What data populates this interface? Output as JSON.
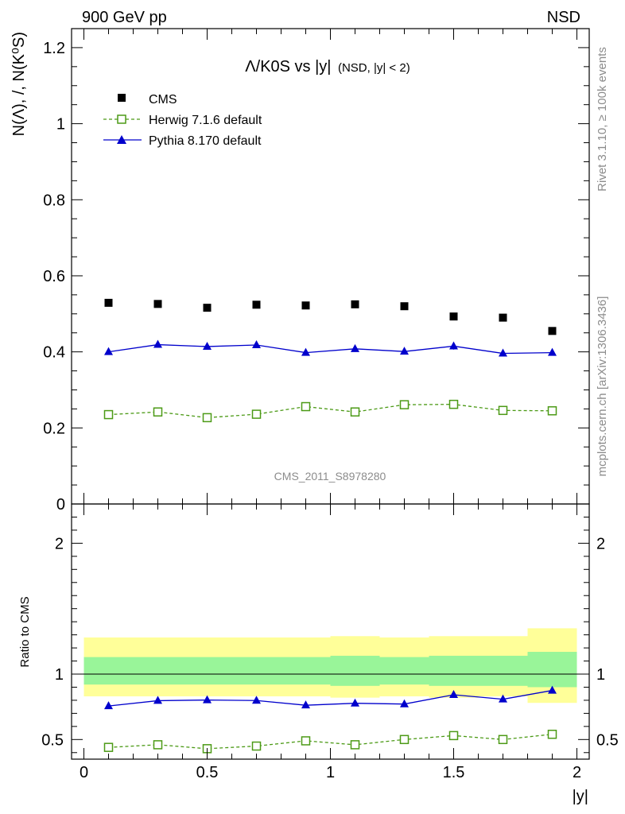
{
  "header": {
    "energy_label": "900 GeV pp",
    "process_label": "NSD"
  },
  "side_labels": {
    "rivet": "Rivet 3.1.10, ≥ 100k events",
    "mcplots": "mcplots.cern.ch [arXiv:1306.3436]"
  },
  "watermark": "CMS_2011_S8978280",
  "colors": {
    "cms": "#000000",
    "herwig": "#4c9a16",
    "pythia": "#0000cc",
    "band_inner": "#99f599",
    "band_outer": "#ffff99"
  },
  "chart_data": [
    {
      "type": "scatter",
      "title_main": "Λ/K0S vs |y|",
      "title_sub": "(NSD, |y| < 2)",
      "ylabel": "N(Λ), /, N(K⁰S)",
      "ylim": [
        0,
        1.25
      ],
      "xlim": [
        -0.05,
        2.05
      ],
      "yticks": [
        0,
        0.2,
        0.4,
        0.6,
        0.8,
        1,
        1.2
      ],
      "ytick_labels": [
        "0",
        "0.2",
        "0.4",
        "0.6",
        "0.8",
        "1",
        "1.2"
      ],
      "x": [
        0.1,
        0.3,
        0.5,
        0.7,
        0.9,
        1.1,
        1.3,
        1.5,
        1.7,
        1.9
      ],
      "legend_position": "top-left",
      "series": [
        {
          "name": "CMS",
          "key": "cms",
          "marker": "filled-square",
          "values": [
            0.529,
            0.526,
            0.516,
            0.524,
            0.522,
            0.525,
            0.52,
            0.493,
            0.49,
            0.455
          ]
        },
        {
          "name": "Herwig 7.1.6 default",
          "key": "herwig",
          "marker": "open-square",
          "line": "dashed",
          "values": [
            0.235,
            0.242,
            0.227,
            0.236,
            0.256,
            0.242,
            0.261,
            0.262,
            0.246,
            0.245
          ],
          "errors": [
            0.006,
            0.006,
            0.006,
            0.006,
            0.006,
            0.006,
            0.006,
            0.006,
            0.006,
            0.006
          ]
        },
        {
          "name": "Pythia 8.170 default",
          "key": "pythia",
          "marker": "filled-triangle",
          "line": "solid",
          "values": [
            0.4,
            0.419,
            0.414,
            0.418,
            0.398,
            0.408,
            0.401,
            0.415,
            0.396,
            0.398
          ],
          "errors": [
            0.006,
            0.008,
            0.008,
            0.008,
            0.006,
            0.008,
            0.007,
            0.009,
            0.007,
            0.008
          ]
        }
      ]
    },
    {
      "type": "line",
      "ylabel": "Ratio to CMS",
      "xlabel": "|y|",
      "ylim": [
        0.35,
        2.3
      ],
      "xlim": [
        -0.05,
        2.05
      ],
      "xticks": [
        0,
        0.5,
        1,
        1.5,
        2
      ],
      "xtick_labels": [
        "0",
        "0.5",
        "1",
        "1.5",
        "2"
      ],
      "yticks": [
        0.5,
        1,
        2
      ],
      "ytick_labels": [
        "0.5",
        "1",
        "2"
      ],
      "reference_line": 1,
      "x_edges": [
        0,
        0.2,
        0.4,
        0.6,
        0.8,
        1.0,
        1.2,
        1.4,
        1.6,
        1.8,
        2.0
      ],
      "band_inner": {
        "low": [
          0.92,
          0.92,
          0.92,
          0.92,
          0.92,
          0.91,
          0.92,
          0.91,
          0.91,
          0.9
        ],
        "high": [
          1.13,
          1.13,
          1.13,
          1.13,
          1.13,
          1.14,
          1.13,
          1.14,
          1.14,
          1.17
        ]
      },
      "band_outer": {
        "low": [
          0.83,
          0.83,
          0.83,
          0.83,
          0.83,
          0.82,
          0.83,
          0.82,
          0.83,
          0.78
        ],
        "high": [
          1.28,
          1.28,
          1.28,
          1.28,
          1.28,
          1.29,
          1.28,
          1.29,
          1.29,
          1.35
        ]
      },
      "x": [
        0.1,
        0.3,
        0.5,
        0.7,
        0.9,
        1.1,
        1.3,
        1.5,
        1.7,
        1.9
      ],
      "series": [
        {
          "name": "Herwig 7.1.6 default",
          "key": "herwig",
          "marker": "open-square",
          "line": "dashed",
          "values": [
            0.44,
            0.46,
            0.43,
            0.45,
            0.49,
            0.46,
            0.5,
            0.53,
            0.5,
            0.54
          ],
          "errors": [
            0.015,
            0.015,
            0.015,
            0.015,
            0.015,
            0.02,
            0.015,
            0.015,
            0.015,
            0.015
          ]
        },
        {
          "name": "Pythia 8.170 default",
          "key": "pythia",
          "marker": "filled-triangle",
          "line": "solid",
          "values": [
            0.756,
            0.797,
            0.802,
            0.798,
            0.762,
            0.777,
            0.771,
            0.842,
            0.808,
            0.875
          ],
          "errors": [
            0.01,
            0.01,
            0.01,
            0.01,
            0.01,
            0.01,
            0.01,
            0.01,
            0.01,
            0.01
          ]
        }
      ]
    }
  ]
}
